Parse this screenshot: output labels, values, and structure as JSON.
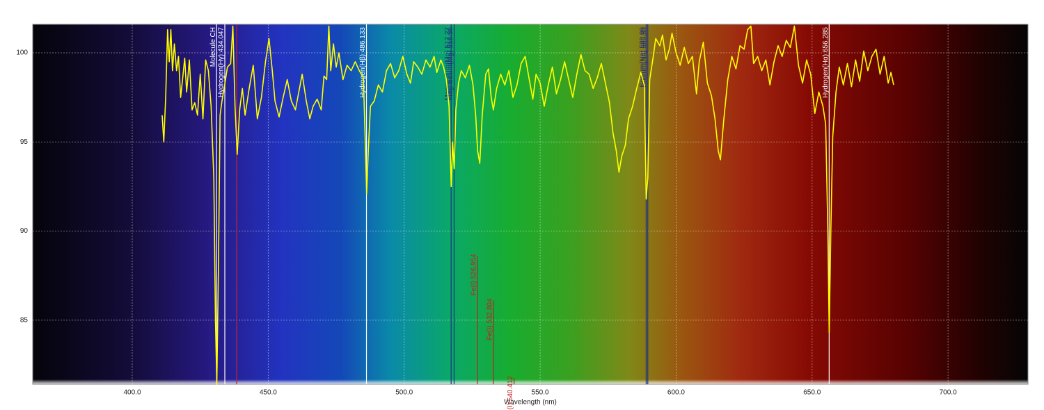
{
  "chart_data": {
    "type": "line",
    "x_label": "Wavelength (nm)",
    "xlim": [
      363.4,
      729.4
    ],
    "ylim": [
      81.4,
      101.6
    ],
    "xticks": [
      {
        "value": 400,
        "label": "400.0"
      },
      {
        "value": 450,
        "label": "450.0"
      },
      {
        "value": 500,
        "label": "500.0"
      },
      {
        "value": 550,
        "label": "550.0"
      },
      {
        "value": 600,
        "label": "600.0"
      },
      {
        "value": 650,
        "label": "650.0"
      },
      {
        "value": 700,
        "label": "700.0"
      }
    ],
    "yticks": [
      85,
      90,
      95,
      100
    ],
    "grid": true,
    "series": [
      {
        "color": "#ffff00",
        "x": [
          411,
          411.6,
          412.3,
          413,
          413.6,
          414.2,
          414.8,
          415.5,
          416.3,
          417,
          417.8,
          418.5,
          419.3,
          420,
          421,
          422,
          423,
          424,
          425,
          426,
          427,
          428,
          429,
          430,
          430.6,
          431.1,
          431.7,
          432.3,
          433,
          434,
          435,
          436.2,
          437,
          437.8,
          438.6,
          439.5,
          440.5,
          441.5,
          443,
          444.5,
          446,
          447.5,
          449,
          450.3,
          451.5,
          452.5,
          454,
          455.5,
          457,
          458.5,
          460,
          461.5,
          462.5,
          464,
          465.3,
          466.5,
          468,
          469.5,
          470.5,
          471.5,
          472.3,
          473,
          474,
          475,
          476,
          477.5,
          479,
          480.5,
          482,
          483.5,
          485,
          485.7,
          486.2,
          486.8,
          487.6,
          489,
          490.5,
          492,
          493.5,
          495,
          496.5,
          498,
          499.5,
          501,
          502.3,
          503.5,
          505,
          506.5,
          508,
          509.5,
          511,
          512,
          513.5,
          514.5,
          515.5,
          516.5,
          517.3,
          517.8,
          518.4,
          519,
          520,
          521,
          522.5,
          524,
          525.3,
          526.3,
          527,
          527.8,
          528.7,
          530,
          531,
          532,
          532.8,
          534,
          535.5,
          537,
          538.5,
          540,
          541.5,
          543,
          544.5,
          546,
          547.3,
          548.5,
          550,
          551.5,
          553,
          554.5,
          556,
          557.5,
          559,
          560.5,
          562,
          563.5,
          565,
          566.5,
          568,
          569.5,
          571,
          572.5,
          574,
          575.5,
          576.8,
          578,
          579,
          580,
          581.3,
          582.5,
          584,
          585.5,
          587,
          588.3,
          589,
          589.6,
          590.3,
          591.5,
          592.5,
          594,
          595,
          596.3,
          597.5,
          598.5,
          600,
          601.5,
          603,
          604.5,
          606,
          607.5,
          608.5,
          610,
          611.5,
          613,
          614.3,
          615.5,
          616.3,
          617.5,
          619,
          620.5,
          622,
          623.5,
          625,
          626.3,
          627.5,
          628.5,
          630,
          631.5,
          633,
          634.5,
          636,
          637.5,
          639,
          640.5,
          642,
          643.5,
          645,
          646.5,
          648,
          649.5,
          651,
          652.5,
          654,
          655,
          655.8,
          656.3,
          656.9,
          657.6,
          658.8,
          660,
          661.5,
          663,
          664.5,
          666,
          667.5,
          669,
          670.5,
          672,
          673.5,
          675,
          676.5,
          678,
          679,
          680
        ],
        "values": [
          96.5,
          95,
          97.5,
          101.3,
          99.5,
          101.3,
          99,
          100.5,
          99,
          99.8,
          97.5,
          98.5,
          99.7,
          97.8,
          99.6,
          96.8,
          97.2,
          96.5,
          98.8,
          96.3,
          99.6,
          99,
          97,
          93,
          85,
          81.4,
          88,
          96.5,
          97.3,
          98.2,
          99.2,
          99.4,
          101.5,
          97,
          94.3,
          96.8,
          98,
          96.5,
          98,
          99.3,
          96.3,
          97.5,
          99.5,
          100.8,
          99,
          97.3,
          96.4,
          97.5,
          98.5,
          97.3,
          96.8,
          98,
          98.8,
          97.3,
          96.3,
          97,
          97.4,
          96.8,
          98.7,
          98.5,
          101.5,
          99,
          100.5,
          99.2,
          100,
          98.5,
          99.3,
          99,
          99.5,
          99,
          98.6,
          95,
          92.1,
          94.5,
          97,
          97.3,
          98.2,
          97.8,
          99,
          99.4,
          98.6,
          99,
          99.8,
          98.8,
          98.3,
          99.5,
          99.2,
          98.8,
          99.6,
          99.2,
          99.8,
          98.9,
          99.6,
          99.2,
          98.5,
          97,
          92.5,
          95,
          93.5,
          96.8,
          98.3,
          99,
          98.6,
          99.3,
          98.2,
          96.5,
          94.5,
          93.8,
          96.5,
          98.8,
          99.1,
          97.5,
          96.8,
          98,
          98.8,
          98.2,
          99,
          97.5,
          98.2,
          99.4,
          99.8,
          98.5,
          97.4,
          98.8,
          98.3,
          97,
          98.2,
          99.2,
          97.7,
          98.5,
          99.5,
          98.5,
          97.5,
          98.8,
          99.9,
          99,
          98.8,
          98,
          98.6,
          99.4,
          98.3,
          97.2,
          95.5,
          94.5,
          93.3,
          94.2,
          94.8,
          96.3,
          97,
          98,
          98.9,
          98.2,
          91.8,
          93,
          98.5,
          99.7,
          100.8,
          100.4,
          101,
          99.6,
          100.2,
          101.1,
          100,
          99.3,
          100.3,
          99.4,
          99.8,
          97.7,
          99.5,
          100.6,
          98.3,
          97.6,
          96.3,
          94.5,
          94,
          96.2,
          98.5,
          99.8,
          99.1,
          100.4,
          100.2,
          101.3,
          101.5,
          99.4,
          99.8,
          99,
          99.6,
          98.2,
          99.5,
          100.4,
          99.8,
          100.7,
          100.3,
          101.5,
          99.3,
          98.3,
          99.6,
          98.8,
          96.6,
          97.8,
          97,
          96,
          90,
          84.3,
          90,
          95.3,
          97.8,
          99.2,
          98.2,
          99.4,
          98.1,
          99.6,
          98.4,
          100.1,
          99,
          99.8,
          100.2,
          98.8,
          99.8,
          98.3,
          98.9,
          98.2
        ]
      }
    ],
    "lines": [
      {
        "x": 431.0,
        "label": "Molecule CH",
        "color": "#ffffff"
      },
      {
        "x": 434.047,
        "label": "Hydrogen(Hγ) 434.047",
        "color": "#ffffff"
      },
      {
        "x": 438.4,
        "color": "#d02020"
      },
      {
        "x": 486.133,
        "label": "Hydrogen(Hβ) 486.133",
        "color": "#ffffff"
      },
      {
        "x": 517.27,
        "label": "Magnesium(Mg) 517.27",
        "color": "#203080"
      },
      {
        "x": 518.36,
        "label": "Magnesium(Mg) 518.36",
        "color": "#203080"
      },
      {
        "x": 526.954,
        "label": "Fe(I) 526.954",
        "color": "#c02020",
        "top": 88.6
      },
      {
        "x": 532.804,
        "label": "Fe(I) 532.804",
        "color": "#c02020",
        "top": 86.1
      },
      {
        "x": 540.412,
        "label": "Fe(I) 540.412",
        "color": "#c02020",
        "top": 81.75
      },
      {
        "x": 588.99,
        "label": "Sodium(Na) 588.99",
        "color": "#203080"
      },
      {
        "x": 589.59,
        "label": "Sodium(Na) 589.59",
        "color": "#203080"
      },
      {
        "x": 656.285,
        "label": "Hydrogen(Hα) 656.285",
        "color": "#ffffff"
      }
    ]
  }
}
